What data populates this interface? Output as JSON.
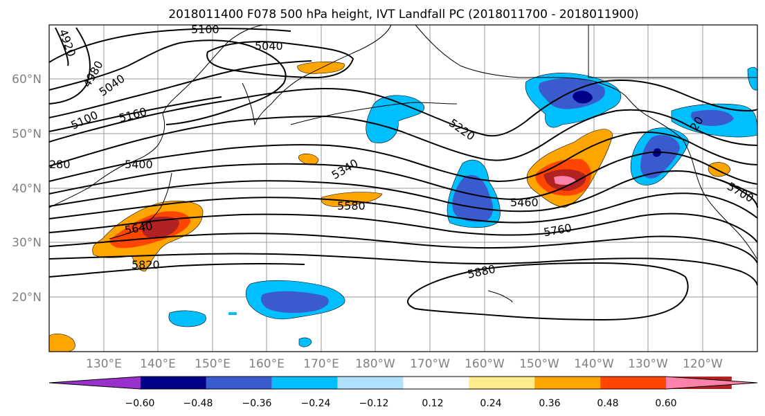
{
  "title": "2018011400 F078 500 hPa height, IVT Landfall PC (2018011700 - 2018011900)",
  "map": {
    "lat_labels": [
      "60°N",
      "50°N",
      "40°N",
      "30°N",
      "20°N"
    ],
    "lon_labels": [
      "130°E",
      "140°E",
      "150°E",
      "160°E",
      "170°E",
      "180°W",
      "170°W",
      "160°W",
      "150°W",
      "140°W",
      "130°W",
      "120°W"
    ],
    "contour_labels": [
      "5100",
      "5040",
      "4920",
      "4980",
      "5040",
      "5100",
      "5160",
      "5220",
      "5340",
      "5400",
      "280",
      "5580",
      "5460",
      "5640",
      "5760",
      "5820",
      "5880",
      "5700",
      "20"
    ]
  },
  "colorbar": {
    "colors": [
      "#9932CC",
      "#00008B",
      "#3A5BCD",
      "#00BFFF",
      "#B0E2FF",
      "#FFFFFF",
      "#FFEC8B",
      "#FFA500",
      "#FF4500",
      "#B22222",
      "#FF82AB"
    ],
    "tick_labels": [
      "−0.60",
      "−0.48",
      "−0.36",
      "−0.24",
      "−0.12",
      "0.12",
      "0.24",
      "0.36",
      "0.48",
      "0.60"
    ]
  }
}
